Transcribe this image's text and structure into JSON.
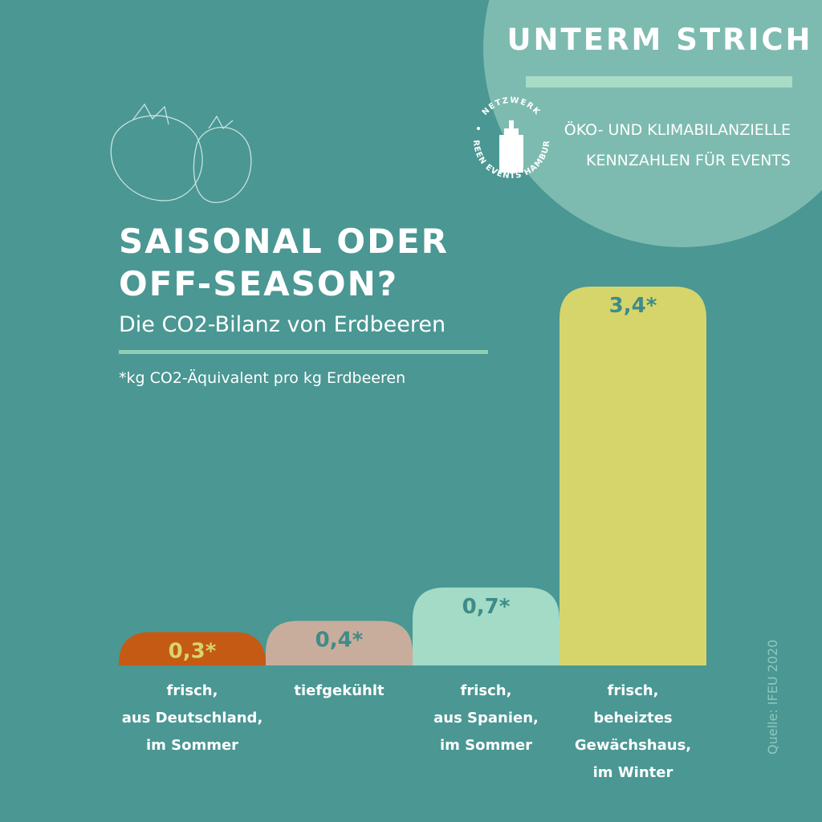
{
  "header": {
    "title": "UNTERM STRICH",
    "subtitle": [
      "ÖKO- UND KLIMABILANZIELLE",
      "KENNZAHLEN FÜR EVENTS"
    ]
  },
  "logo": {
    "top": "NETZWERK",
    "bottom": "GREEN EVENTS HAMBURG"
  },
  "chart_data": {
    "type": "bar",
    "title": [
      "SAISONAL ODER",
      "OFF-SEASON?"
    ],
    "subtitle": "Die CO2-Bilanz von Erdbeeren",
    "note": "*kg CO2-Äquivalent pro kg Erdbeeren",
    "source": "Quelle: IFEU 2020",
    "categories": [
      [
        "frisch,",
        "aus Deutschland,",
        "im Sommer"
      ],
      [
        "tiefgekühlt"
      ],
      [
        "frisch,",
        "aus Spanien,",
        "im Sommer"
      ],
      [
        "frisch,",
        "beheiztes",
        "Gewächshaus,",
        "im Winter"
      ]
    ],
    "values": [
      0.3,
      0.4,
      0.7,
      3.4
    ],
    "value_labels": [
      "0,3*",
      "0,4*",
      "0,7*",
      "3,4*"
    ],
    "colors": [
      "#c55a14",
      "#c8ad9d",
      "#a3dbc6",
      "#d5d56c"
    ],
    "value_label_colors": [
      "#d5d56c",
      "#3f8b88",
      "#3f8b88",
      "#3f8b88"
    ]
  }
}
